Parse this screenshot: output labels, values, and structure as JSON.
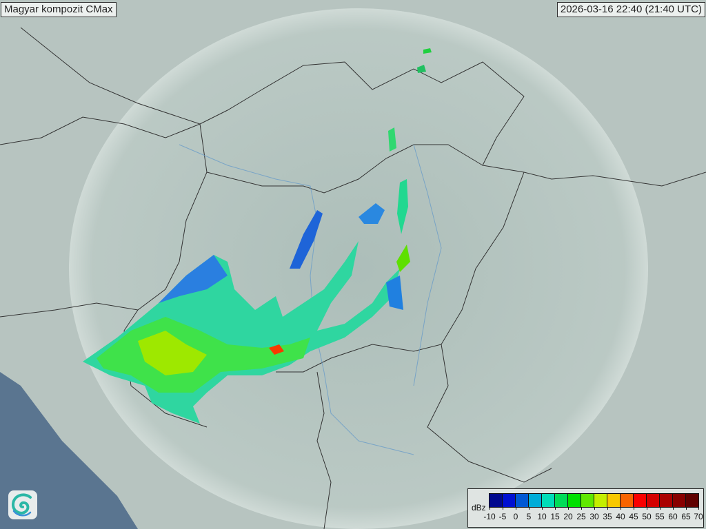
{
  "header": {
    "title": "Magyar kompozit  CMax",
    "timestamp": "2026-03-16 22:40 (21:40 UTC)"
  },
  "legend": {
    "unit": "dBz",
    "ticks": [
      "-10",
      "-5",
      "0",
      "5",
      "10",
      "15",
      "20",
      "25",
      "30",
      "35",
      "40",
      "45",
      "50",
      "55",
      "60",
      "65",
      "70"
    ],
    "colors": [
      "#00088e",
      "#0010d2",
      "#0058d4",
      "#00acd8",
      "#00dcb8",
      "#00dc58",
      "#00e000",
      "#60e800",
      "#c4ee00",
      "#f8c800",
      "#f86400",
      "#fa0000",
      "#d40000",
      "#aa0000",
      "#880000",
      "#600000"
    ]
  },
  "logo": {
    "name": "met-service-swirl-logo"
  }
}
